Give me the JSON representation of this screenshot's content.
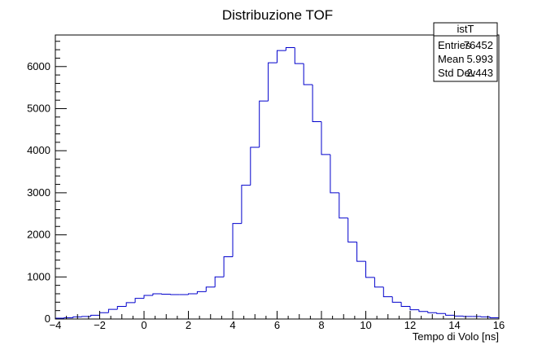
{
  "chart_data": {
    "type": "histogram",
    "title": "Distribuzione TOF",
    "xlabel": "Tempo di Volo [ns]",
    "ylabel": "",
    "xlim": [
      -4,
      16
    ],
    "ylim": [
      0,
      6750
    ],
    "x_ticks": [
      -4,
      -2,
      0,
      2,
      4,
      6,
      8,
      10,
      12,
      14,
      16
    ],
    "y_ticks": [
      0,
      1000,
      2000,
      3000,
      4000,
      5000,
      6000
    ],
    "line_color": "#0000cc",
    "bin_edges_start": -4,
    "bin_width": 0.4,
    "values": [
      20,
      30,
      50,
      60,
      90,
      150,
      230,
      300,
      390,
      490,
      560,
      600,
      590,
      580,
      580,
      600,
      650,
      760,
      1000,
      1480,
      2270,
      3180,
      4080,
      5180,
      6090,
      6380,
      6450,
      6070,
      5570,
      4690,
      3910,
      3000,
      2400,
      1830,
      1370,
      990,
      760,
      530,
      400,
      300,
      220,
      180,
      150,
      130,
      90,
      70,
      60,
      60,
      50,
      30
    ]
  },
  "stats_box": {
    "name": "istT",
    "rows": [
      {
        "label": "Entries",
        "value": "76452"
      },
      {
        "label": "Mean",
        "value": "5.993"
      },
      {
        "label": "Std Dev",
        "value": "2.443"
      }
    ]
  }
}
